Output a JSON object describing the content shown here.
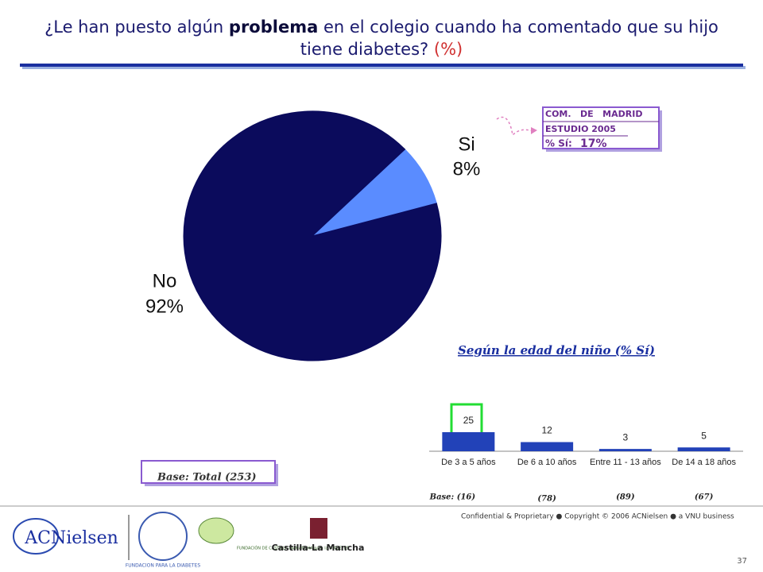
{
  "title": {
    "before": "¿Le han puesto algún ",
    "bold": "problema",
    "after": " en el colegio cuando ha comentado que su hijo",
    "line2": "tiene diabetes?",
    "unit": "(%)"
  },
  "chart_data": [
    {
      "type": "pie",
      "categories": [
        "Si",
        "No"
      ],
      "values": [
        8,
        92
      ],
      "value_labels": [
        "8%",
        "92%"
      ],
      "colors": [
        "#5a8cff",
        "#0b0b5c"
      ]
    },
    {
      "type": "bar",
      "title": "Según la edad del niño (% Sí)",
      "categories": [
        "De 3 a 5 años",
        "De 6 a 10 años",
        "Entre 11 - 13 años",
        "De 14  a 18 años"
      ],
      "values": [
        25,
        12,
        3,
        5
      ],
      "bases": [
        "Base: (16)",
        "(78)",
        "(89)",
        "(67)"
      ],
      "color": "#2242b8"
    }
  ],
  "base_total": "Base: Total (253)",
  "madrid_box": {
    "line1": "COM.   DE   MADRID",
    "line2": "ESTUDIO 2005",
    "label": "% Sí:",
    "value": "17%"
  },
  "footer": {
    "confidential": "Confidential & Proprietary ● Copyright © 2006 ACNielsen ● a VNU business",
    "page": "37"
  },
  "logos": {
    "acnielsen": "ACNielsen",
    "fundacion": "FUNDACION PARA LA DIABETES",
    "fclm": "FUNDACIÓN DE CASTILLA-LA MANCHA para la DIABETES",
    "clm": "Castilla-La Mancha"
  }
}
